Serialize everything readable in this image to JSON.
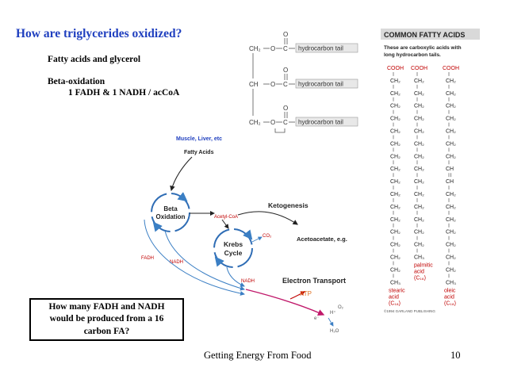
{
  "title": "How are triglycerides oxidized?",
  "bullets": [
    "Fatty acids and glycerol",
    "Beta-oxidation",
    "1 FADH & 1 NADH / acCoA"
  ],
  "question": [
    "How many FADH and NADH",
    "would be produced from a 16",
    "carbon FA?"
  ],
  "footer": {
    "title": "Getting Energy From Food",
    "page": "10"
  },
  "triglyceride": {
    "ch2": "CH₂",
    "ch": "CH",
    "o": "O",
    "c": "C",
    "tail": "hydrocarbon tail"
  },
  "diagram": {
    "tissue": "Muscle, Liver, etc",
    "fatty_acids": "Fatty Acids",
    "beta": [
      "Beta",
      "Oxidation"
    ],
    "acetyl": "Acetyl-CoA",
    "ketogenesis": "Ketogenesis",
    "acetoacetate": "Acetoacetate, e.g.",
    "krebs": [
      "Krebs",
      "Cycle"
    ],
    "co2": "CO₂",
    "fadh": "FADH",
    "nadh": "NADH",
    "nadh2": "NADH",
    "et": "Electron Transport",
    "atp": "ATP",
    "o2": "O₂",
    "h": "H⁺",
    "e": "e⁻",
    "h2o": "H₂O"
  },
  "fatty_acids_panel": {
    "header": "COMMON FATTY ACIDS",
    "desc": [
      "These are carboxylic acids with",
      "long hydrocarbon tails."
    ],
    "cooh": "COOH",
    "ch2": "CH₂",
    "ch": "CH",
    "ch3": "CH₃",
    "names": {
      "stearic": [
        "stearic",
        "acid",
        "(C₁₈)"
      ],
      "palmitic": [
        "palmitic",
        "acid",
        "(C₁₆)"
      ],
      "oleic": [
        "oleic",
        "acid",
        "(C₁₈)"
      ]
    },
    "credit": "©1994 GARLAND PUBLISHING"
  },
  "colors": {
    "title_blue": "#1f3fbf",
    "arrow_blue": "#3b7fc4",
    "cycle_blue": "#2f6db5",
    "tail_box": "#e8e8e8",
    "header_box": "#d9d9d9",
    "red": "#c00000",
    "magenta": "#c0186a"
  }
}
